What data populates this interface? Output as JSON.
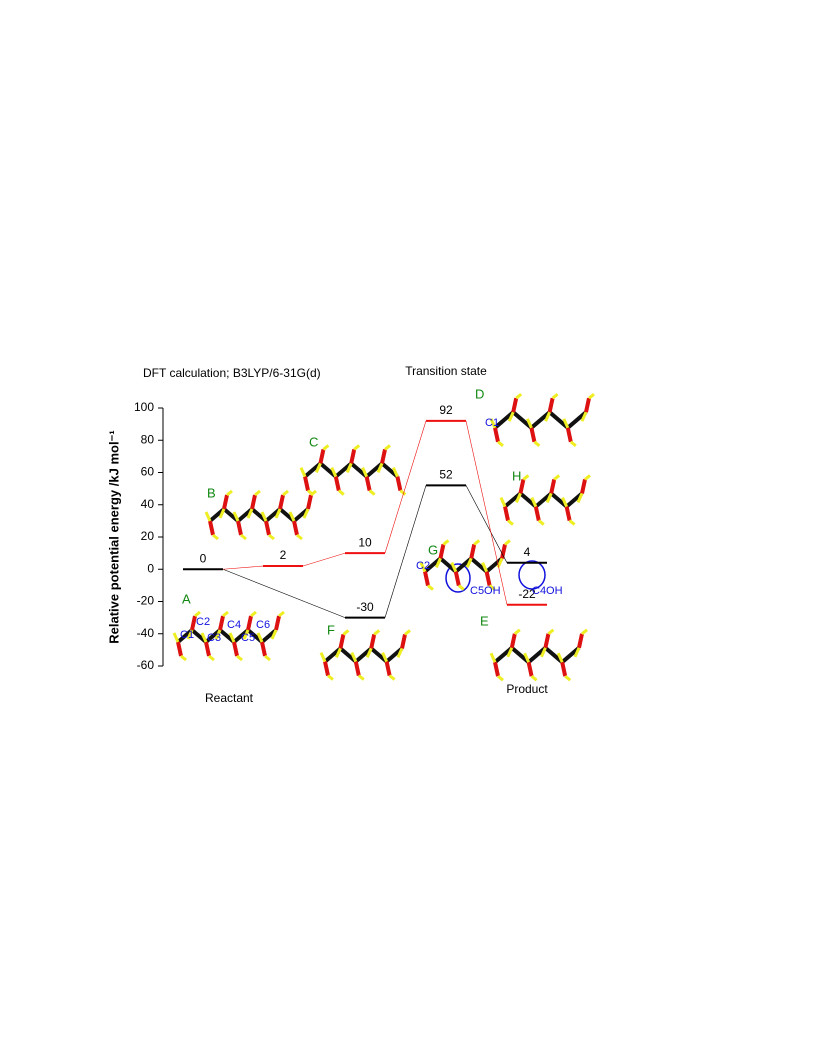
{
  "chart_data": {
    "type": "energy",
    "subtitle": "DFT calculation; B3LYP/6-31G(d)",
    "y_label": "Relative potential energy   /kJ mol⁻¹",
    "categories": [
      "Reactant",
      null,
      null,
      "Transition state",
      "Product"
    ],
    "series": [
      {
        "color": "#000000",
        "values": [
          0,
          null,
          -30,
          52,
          4
        ]
      },
      {
        "color": "#ee1111",
        "values": [
          null,
          2,
          10,
          92,
          -22
        ]
      }
    ],
    "ylim": [
      -60,
      100
    ],
    "yticks": [
      -60,
      -40,
      -20,
      0,
      20,
      40,
      60,
      80,
      100
    ],
    "structure_labels": [
      "A",
      "B",
      "C",
      "D",
      "E",
      "F",
      "G",
      "H"
    ],
    "atom_labels": [
      "C1",
      "C2",
      "C3",
      "C4",
      "C5",
      "C6",
      "C1",
      "C4OH",
      "C2",
      "C5OH"
    ]
  }
}
